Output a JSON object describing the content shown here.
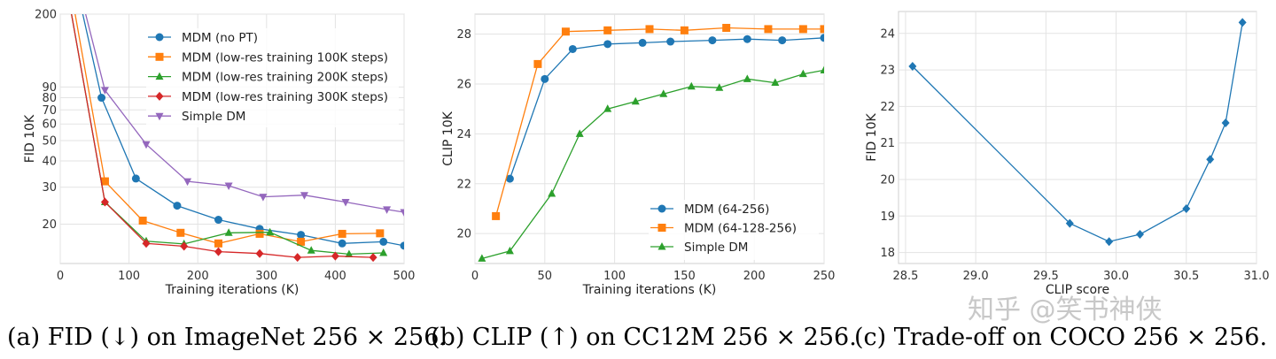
{
  "chart_data": [
    {
      "type": "line",
      "xlabel": "Training iterations (K)",
      "ylabel": "FID 10K",
      "yscale": "log",
      "xlim": [
        0,
        500
      ],
      "ylim": [
        13,
        200
      ],
      "xticks": [
        0,
        100,
        200,
        300,
        400,
        500
      ],
      "yticks": [
        20,
        30,
        40,
        50,
        60,
        70,
        80,
        90,
        200
      ],
      "legend_position": "top-right",
      "series": [
        {
          "name": "MDM (no PT)",
          "color": "#1f77b4",
          "marker": "circle",
          "x": [
            0,
            60,
            110,
            170,
            230,
            290,
            350,
            410,
            470,
            500
          ],
          "y": [
            600,
            80,
            33,
            24.5,
            21,
            19,
            17.8,
            16.2,
            16.5,
            15.8
          ]
        },
        {
          "name": "MDM (low-res training 100K steps)",
          "color": "#ff7f0e",
          "marker": "square",
          "x": [
            0,
            65,
            120,
            175,
            230,
            290,
            350,
            410,
            465
          ],
          "y": [
            500,
            32,
            20.8,
            18.2,
            16.2,
            18,
            16.5,
            18,
            18.1
          ]
        },
        {
          "name": "MDM (low-res training 200K steps)",
          "color": "#2ca02c",
          "marker": "triangle",
          "x": [
            0,
            65,
            125,
            180,
            245,
            305,
            365,
            420,
            470
          ],
          "y": [
            400,
            25.5,
            16.6,
            16.1,
            18.2,
            18.3,
            15,
            14.4,
            14.6
          ]
        },
        {
          "name": "MDM (low-res training 300K steps)",
          "color": "#d62728",
          "marker": "diamond",
          "x": [
            0,
            65,
            125,
            180,
            230,
            290,
            345,
            400,
            455
          ],
          "y": [
            400,
            25.5,
            16.2,
            15.7,
            14.8,
            14.5,
            13.9,
            14.1,
            13.9
          ]
        },
        {
          "name": "Simple DM",
          "color": "#9467bd",
          "marker": "triangle-down",
          "x": [
            0,
            65,
            125,
            185,
            245,
            295,
            355,
            415,
            475,
            500
          ],
          "y": [
            600,
            87,
            48,
            32,
            30.5,
            27,
            27.5,
            25.5,
            23.5,
            22.8
          ]
        }
      ]
    },
    {
      "type": "line",
      "xlabel": "Training iterations (K)",
      "ylabel": "CLIP 10K",
      "xlim": [
        0,
        250
      ],
      "ylim": [
        18.8,
        28.8
      ],
      "xticks": [
        0,
        50,
        100,
        150,
        200,
        250
      ],
      "yticks": [
        20,
        22,
        24,
        26,
        28
      ],
      "legend_position": "lower-right",
      "series": [
        {
          "name": "MDM (64-256)",
          "color": "#1f77b4",
          "marker": "circle",
          "x": [
            25,
            50,
            70,
            95,
            120,
            140,
            170,
            195,
            220,
            250
          ],
          "y": [
            22.2,
            26.2,
            27.4,
            27.6,
            27.65,
            27.7,
            27.75,
            27.8,
            27.75,
            27.85
          ]
        },
        {
          "name": "MDM (64-128-256)",
          "color": "#ff7f0e",
          "marker": "square",
          "x": [
            15,
            45,
            65,
            95,
            125,
            150,
            180,
            210,
            235,
            250
          ],
          "y": [
            20.7,
            26.8,
            28.1,
            28.15,
            28.2,
            28.15,
            28.25,
            28.2,
            28.2,
            28.2
          ]
        },
        {
          "name": "Simple DM",
          "color": "#2ca02c",
          "marker": "triangle",
          "x": [
            5,
            25,
            55,
            75,
            95,
            115,
            135,
            155,
            175,
            195,
            215,
            235,
            250
          ],
          "y": [
            19,
            19.3,
            21.6,
            24,
            25,
            25.3,
            25.6,
            25.9,
            25.85,
            26.2,
            26.05,
            26.4,
            26.55
          ]
        }
      ]
    },
    {
      "type": "line",
      "xlabel": "CLIP score",
      "ylabel": "FID 10K",
      "xlim": [
        28.45,
        31.0
      ],
      "ylim": [
        17.7,
        24.6
      ],
      "xticks": [
        "28.5",
        "29.0",
        "29.5",
        "30.0",
        "30.5",
        "31.0"
      ],
      "yticks": [
        18,
        19,
        20,
        21,
        22,
        23,
        24
      ],
      "legend_position": "none",
      "series": [
        {
          "name": "MDM",
          "color": "#1f77b4",
          "marker": "diamond",
          "x": [
            28.55,
            29.67,
            29.95,
            30.17,
            30.5,
            30.67,
            30.78,
            30.9
          ],
          "y": [
            23.1,
            18.8,
            18.3,
            18.5,
            19.2,
            20.55,
            21.55,
            24.3
          ]
        }
      ]
    }
  ],
  "captions": [
    "(a) FID (↓) on ImageNet 256 × 256.",
    "(b) CLIP (↑) on CC12M 256 × 256.",
    "(c) Trade-off on COCO 256 × 256."
  ],
  "watermark": "知乎 @笑书神侠"
}
